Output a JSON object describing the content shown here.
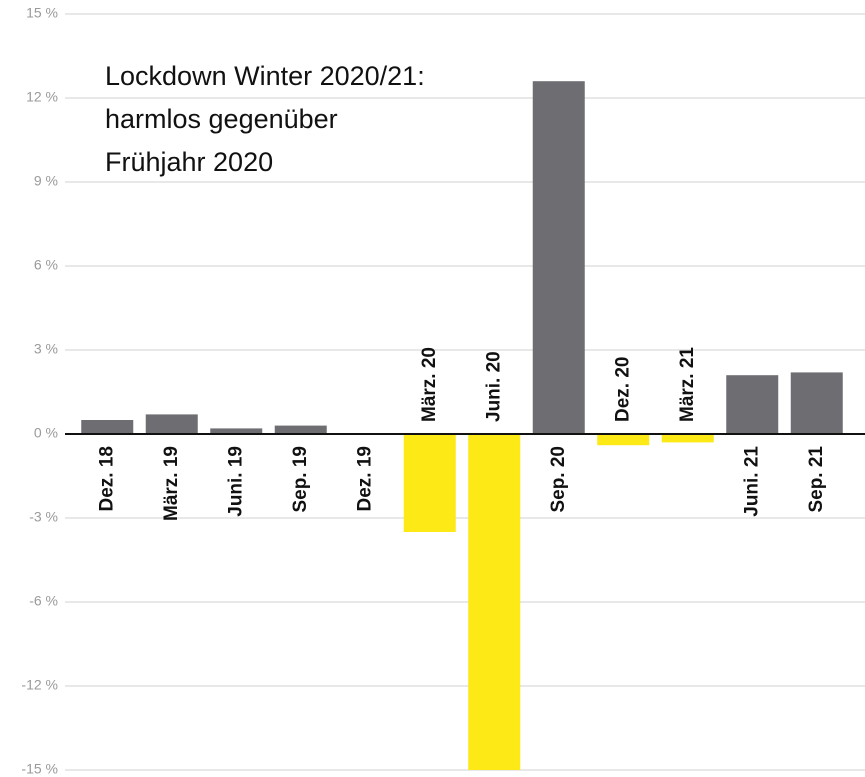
{
  "chart_data": {
    "type": "bar",
    "annotation": [
      "Lockdown Winter 2020/21:",
      "harmlos gegenüber",
      "Frühjahr 2020"
    ],
    "categories": [
      "Dez. 18",
      "März. 19",
      "Juni. 19",
      "Sep. 19",
      "Dez. 19",
      "März. 20",
      "Juni. 20",
      "Sep. 20",
      "Dez. 20",
      "März. 21",
      "Juni. 21",
      "Sep. 21"
    ],
    "values": [
      0.5,
      0.7,
      0.2,
      0.3,
      0.0,
      -3.5,
      -15,
      12.6,
      -0.4,
      -0.3,
      2.1,
      2.2
    ],
    "colors": [
      "#6e6d72",
      "#6e6d72",
      "#6e6d72",
      "#6e6d72",
      "#6e6d72",
      "#fce916",
      "#fce916",
      "#6e6d72",
      "#fce916",
      "#fce916",
      "#6e6d72",
      "#6e6d72"
    ],
    "ylim": [
      -15,
      15
    ],
    "yticks": [
      {
        "value": 15,
        "label": "15 %"
      },
      {
        "value": 12,
        "label": "12 %"
      },
      {
        "value": 9,
        "label": "9 %"
      },
      {
        "value": 6,
        "label": "6 %"
      },
      {
        "value": 3,
        "label": "3 %"
      },
      {
        "value": 0,
        "label": "0 %"
      },
      {
        "value": -3,
        "label": "-3 %"
      },
      {
        "value": -6,
        "label": "-6 %"
      },
      {
        "value": -12,
        "label": "-12 %"
      },
      {
        "value": -15,
        "label": "-15 %"
      }
    ],
    "grid": true
  }
}
